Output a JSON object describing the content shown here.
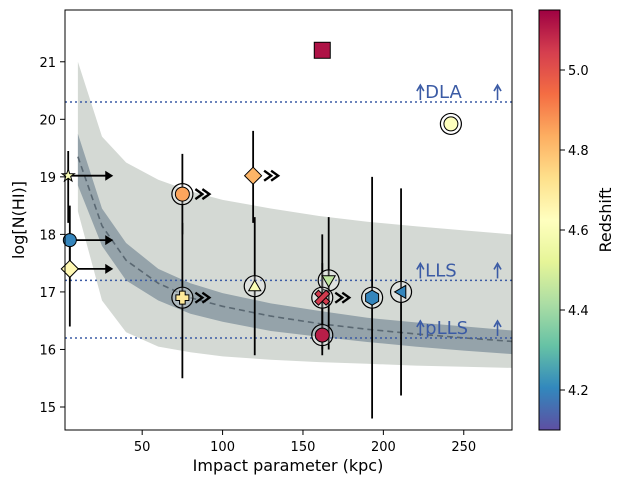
{
  "chart_data": {
    "type": "scatter",
    "xlabel": "Impact parameter (kpc)",
    "ylabel": "log[N(HI)]",
    "xlim": [
      2,
      280
    ],
    "ylim": [
      14.6,
      21.9
    ],
    "xticks": [
      50,
      100,
      150,
      200,
      250
    ],
    "yticks": [
      15,
      16,
      17,
      18,
      19,
      20,
      21
    ],
    "grid": false,
    "colorbar": {
      "label": "Redshift",
      "range": [
        4.1,
        5.15
      ],
      "ticks": [
        4.2,
        4.4,
        4.6,
        4.8,
        5.0
      ],
      "colormap": "Spectral_r"
    },
    "thresholds": [
      {
        "name": "DLA",
        "y": 20.3
      },
      {
        "name": "LLS",
        "y": 17.2
      },
      {
        "name": "pLLS",
        "y": 16.2
      }
    ],
    "model_band": {
      "x": [
        10,
        25,
        40,
        60,
        80,
        100,
        130,
        160,
        190,
        220,
        250,
        280
      ],
      "outer_upper": [
        21.0,
        19.7,
        19.25,
        18.95,
        18.75,
        18.6,
        18.45,
        18.32,
        18.22,
        18.14,
        18.07,
        18.0
      ],
      "outer_lower": [
        18.4,
        16.85,
        16.3,
        16.05,
        15.95,
        15.88,
        15.82,
        15.78,
        15.75,
        15.72,
        15.7,
        15.68
      ],
      "inner_upper": [
        19.75,
        18.45,
        17.85,
        17.4,
        17.15,
        16.98,
        16.8,
        16.67,
        16.55,
        16.47,
        16.4,
        16.33
      ],
      "inner_lower": [
        18.85,
        17.8,
        17.2,
        16.85,
        16.62,
        16.48,
        16.32,
        16.22,
        16.13,
        16.05,
        15.98,
        15.92
      ],
      "median": [
        19.35,
        18.15,
        17.55,
        17.15,
        16.9,
        16.75,
        16.58,
        16.45,
        16.35,
        16.27,
        16.2,
        16.14
      ]
    },
    "points": [
      {
        "x": 162,
        "y": 21.2,
        "z": 5.12,
        "marker": "square",
        "err": null,
        "circled": false,
        "arrow_x": null,
        "lower_limit_x": false
      },
      {
        "x": 242,
        "y": 19.92,
        "z": 4.62,
        "marker": "circle",
        "err": null,
        "circled": true,
        "arrow_x": null,
        "lower_limit_x": false
      },
      {
        "x": 119,
        "y": 19.02,
        "z": 4.82,
        "marker": "diamond",
        "err": [
          18.2,
          19.8
        ],
        "circled": false,
        "arrow_x": null,
        "lower_limit_x": true
      },
      {
        "x": 75,
        "y": 18.7,
        "z": 4.85,
        "marker": "circle",
        "err": [
          18.0,
          19.4
        ],
        "circled": true,
        "arrow_x": null,
        "lower_limit_x": true
      },
      {
        "x": 4,
        "y": 19.02,
        "z": 4.6,
        "marker": "star",
        "err": [
          18.2,
          19.45
        ],
        "circled": false,
        "arrow_x": 32,
        "lower_limit_x": false
      },
      {
        "x": 5,
        "y": 17.9,
        "z": 4.2,
        "marker": "circle",
        "err": [
          17.3,
          18.5
        ],
        "circled": false,
        "arrow_x": 32,
        "lower_limit_x": false
      },
      {
        "x": 5,
        "y": 17.4,
        "z": 4.65,
        "marker": "diamond",
        "err": [
          16.4,
          18.0
        ],
        "circled": false,
        "arrow_x": 32,
        "lower_limit_x": false
      },
      {
        "x": 75,
        "y": 16.9,
        "z": 4.7,
        "marker": "plus",
        "err": [
          15.5,
          18.2
        ],
        "circled": true,
        "arrow_x": null,
        "lower_limit_x": true
      },
      {
        "x": 120,
        "y": 17.1,
        "z": 4.6,
        "marker": "triangle-up",
        "err": [
          15.9,
          18.3
        ],
        "circled": true,
        "arrow_x": null,
        "lower_limit_x": false
      },
      {
        "x": 166,
        "y": 17.2,
        "z": 4.45,
        "marker": "triangle-down",
        "err": [
          16.0,
          18.3
        ],
        "circled": true,
        "arrow_x": null,
        "lower_limit_x": false
      },
      {
        "x": 162,
        "y": 16.9,
        "z": 5.05,
        "marker": "x",
        "err": [
          16.0,
          18.0
        ],
        "circled": true,
        "arrow_x": null,
        "lower_limit_x": true
      },
      {
        "x": 162,
        "y": 16.25,
        "z": 5.1,
        "marker": "circle",
        "err": [
          15.9,
          17.5
        ],
        "circled": true,
        "arrow_x": null,
        "lower_limit_x": false
      },
      {
        "x": 193,
        "y": 16.9,
        "z": 4.2,
        "marker": "hexagon",
        "err": [
          14.8,
          19.0
        ],
        "circled": true,
        "arrow_x": null,
        "lower_limit_x": false
      },
      {
        "x": 211,
        "y": 17.0,
        "z": 4.2,
        "marker": "triangle-left",
        "err": [
          15.2,
          18.8
        ],
        "circled": true,
        "arrow_x": null,
        "lower_limit_x": false
      }
    ]
  }
}
